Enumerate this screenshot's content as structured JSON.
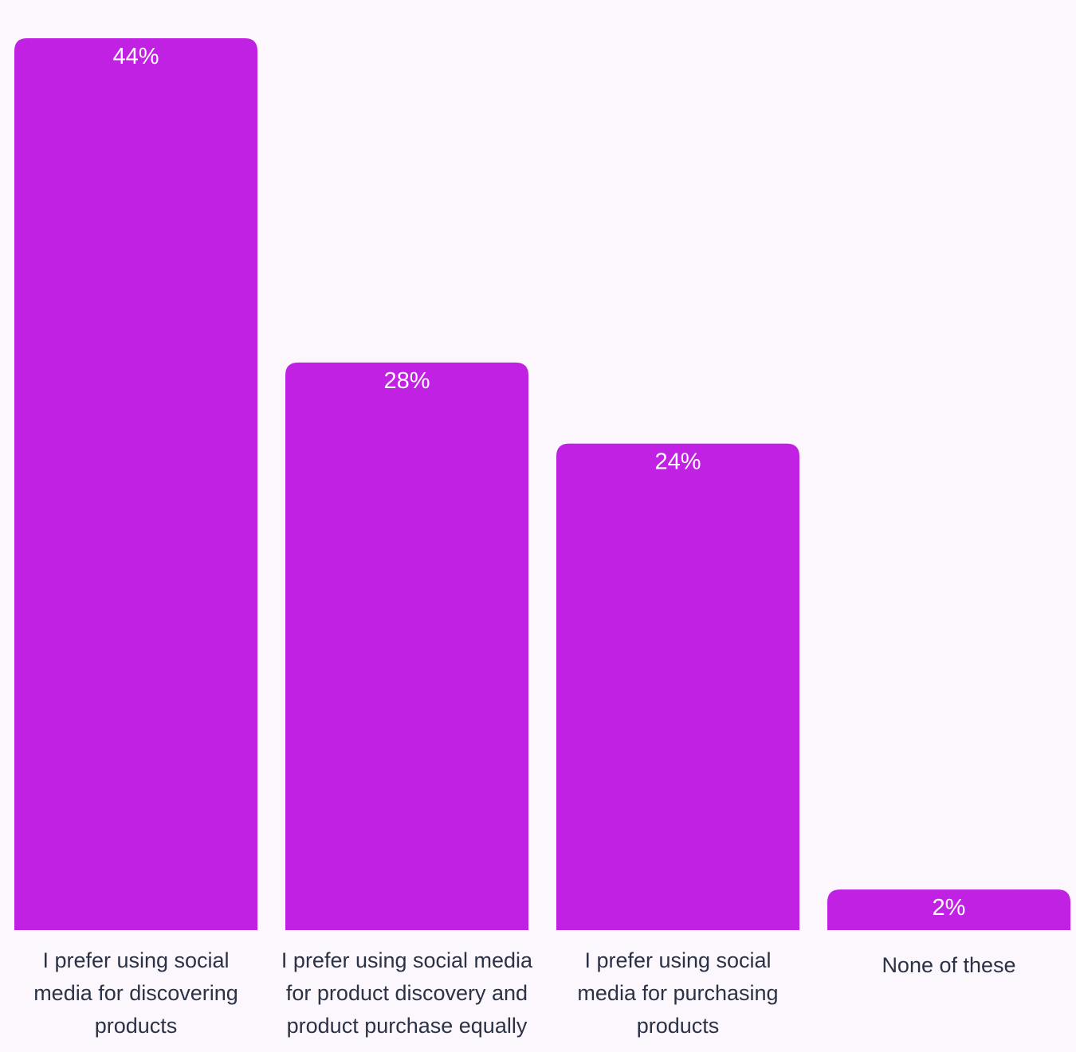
{
  "chart_data": {
    "type": "bar",
    "categories": [
      [
        "I prefer using social",
        "media for discovering",
        "products"
      ],
      [
        "I prefer using social media",
        "for product discovery and",
        "product purchase equally"
      ],
      [
        "I prefer using social",
        "media for purchasing",
        "products"
      ],
      [
        "None of these"
      ]
    ],
    "values": [
      44,
      28,
      24,
      2
    ],
    "value_labels": [
      "44%",
      "28%",
      "24%",
      "2%"
    ],
    "unit": "%",
    "title": "",
    "xlabel": "",
    "ylabel": "",
    "ylim": [
      0,
      44
    ],
    "grid": false,
    "legend": "none",
    "colors": {
      "bar": "#c021e2",
      "value_label": "#ffffff",
      "category_label": "#2b3245",
      "background": "#fbf7fd"
    }
  }
}
